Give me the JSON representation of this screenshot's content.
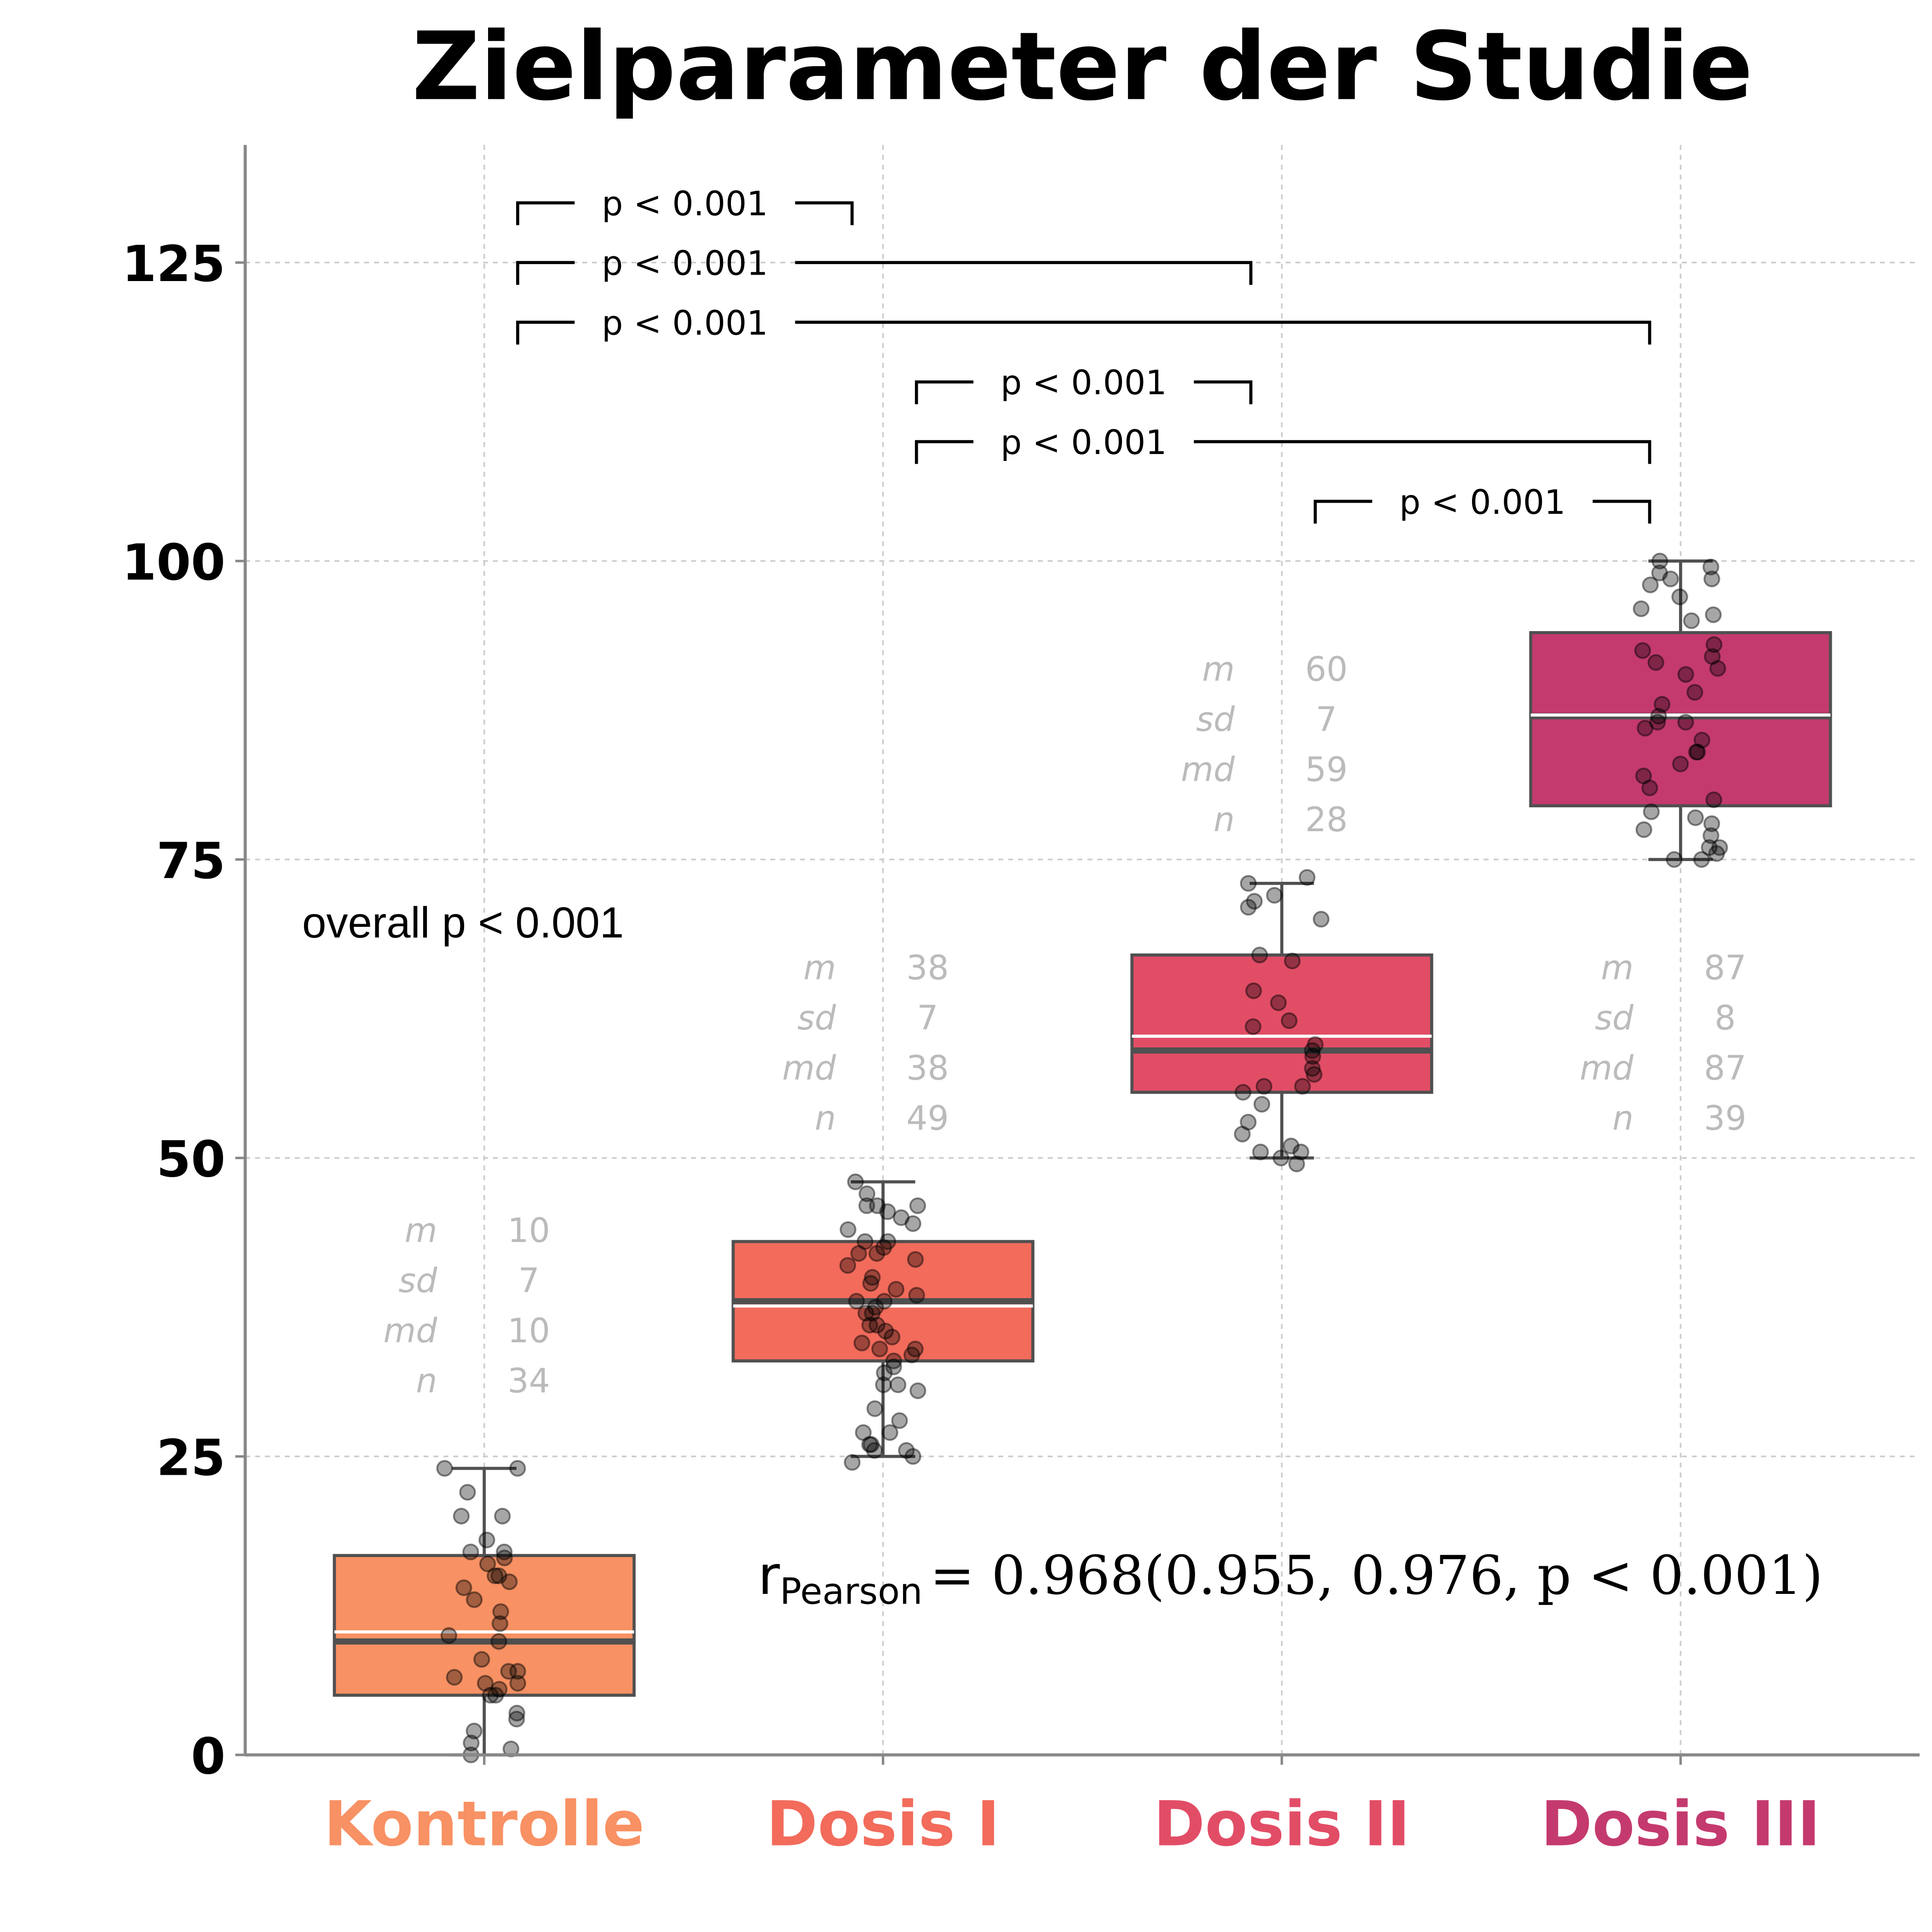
{
  "chart_data": {
    "type": "box",
    "title": "Zielparameter der Studie",
    "xlabel": "",
    "ylabel": "",
    "ylim": [
      0,
      135
    ],
    "yticks": [
      0,
      25,
      50,
      75,
      100,
      125
    ],
    "grid": true,
    "categories": [
      "Kontrolle",
      "Dosis I",
      "Dosis II",
      "Dosis III"
    ],
    "colors": [
      "#F89163",
      "#F26B5B",
      "#E24D66",
      "#C43A6E"
    ],
    "boxes": [
      {
        "whislo": 0,
        "q1": 5,
        "median": 9.5,
        "mean": 10.3,
        "q3": 16.7,
        "whishi": 24
      },
      {
        "whislo": 25,
        "q1": 33,
        "median": 38,
        "mean": 37.6,
        "q3": 43,
        "whishi": 48
      },
      {
        "whislo": 50,
        "q1": 55.5,
        "median": 59,
        "mean": 60.2,
        "q3": 67,
        "whishi": 73
      },
      {
        "whislo": 75,
        "q1": 79.5,
        "median": 87,
        "mean": 87.1,
        "q3": 94,
        "whishi": 100
      }
    ],
    "points": [
      [
        24,
        24,
        22,
        20,
        20,
        18,
        17,
        17,
        16.5,
        16,
        15,
        15,
        14.5,
        14,
        13,
        12,
        11,
        10,
        9.5,
        8,
        7,
        7,
        6.5,
        6,
        6,
        5.5,
        5,
        5,
        3.5,
        3,
        2,
        1,
        0.5,
        0
      ],
      [
        48,
        47,
        46,
        46,
        46,
        45.5,
        45,
        44.5,
        44,
        43,
        43,
        42.5,
        42,
        42,
        41.5,
        41,
        40,
        39.5,
        39,
        38.5,
        38,
        38,
        37.5,
        37,
        37,
        36,
        36,
        35.5,
        35,
        34.5,
        34,
        34,
        33.5,
        33,
        32.5,
        32,
        31,
        31,
        30.5,
        29,
        28,
        27,
        27,
        26,
        26,
        25.5,
        25.5,
        25,
        24.5
      ],
      [
        73.5,
        73,
        72,
        71.5,
        71,
        70,
        67,
        66.5,
        64,
        63,
        61.5,
        61,
        59.5,
        59,
        58.5,
        57.5,
        57,
        56,
        56,
        55.5,
        54.5,
        53,
        52,
        51,
        50.5,
        50.5,
        50,
        49.5
      ],
      [
        100,
        99.5,
        99,
        98.5,
        98.5,
        98,
        97,
        96,
        95.5,
        95,
        93,
        92.5,
        92,
        91.5,
        91,
        90.5,
        89,
        88,
        87,
        86.5,
        86.5,
        86,
        85,
        84,
        84,
        83,
        82,
        81,
        80,
        79,
        78.5,
        78,
        77.5,
        77,
        76,
        76,
        75.5,
        75,
        75
      ]
    ],
    "stats": [
      {
        "m": "10",
        "sd": "7",
        "md": "10",
        "n": "34"
      },
      {
        "m": "38",
        "sd": "7",
        "md": "38",
        "n": "49"
      },
      {
        "m": "60",
        "sd": "7",
        "md": "59",
        "n": "28"
      },
      {
        "m": "87",
        "sd": "8",
        "md": "87",
        "n": "39"
      }
    ],
    "stat_labels": {
      "m": "m",
      "sd": "sd",
      "md": "md",
      "n": "n"
    },
    "comparisons": [
      {
        "pair": [
          0,
          1
        ],
        "label": "p < 0.001"
      },
      {
        "pair": [
          0,
          2
        ],
        "label": "p < 0.001"
      },
      {
        "pair": [
          0,
          3
        ],
        "label": "p < 0.001"
      },
      {
        "pair": [
          1,
          2
        ],
        "label": "p < 0.001"
      },
      {
        "pair": [
          1,
          3
        ],
        "label": "p < 0.001"
      },
      {
        "pair": [
          2,
          3
        ],
        "label": "p < 0.001"
      }
    ],
    "overall_label": "overall p < 0.001",
    "pearson": {
      "r_symbol": "r",
      "subscript": "Pearson",
      "expression": "= 0.968(0.955, 0.976, p < 0.001)"
    }
  }
}
